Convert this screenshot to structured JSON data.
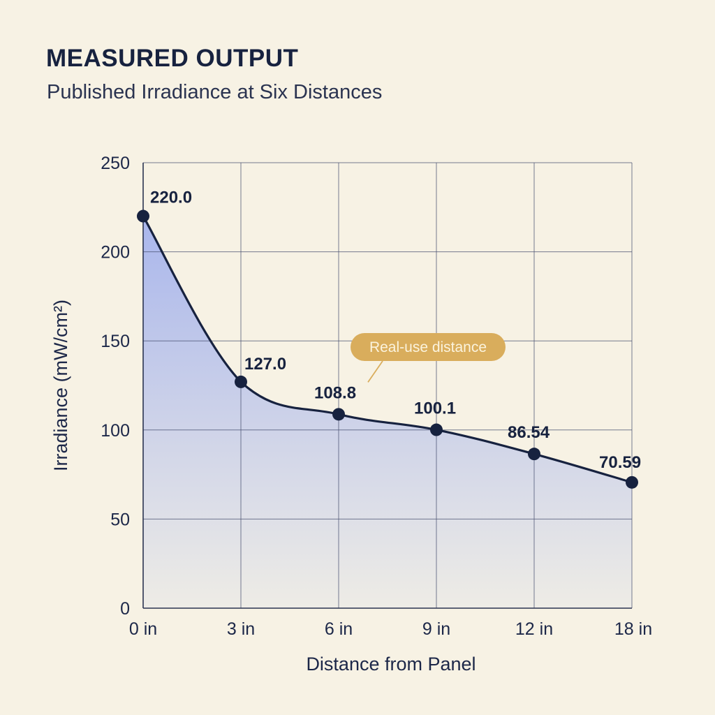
{
  "header": {
    "title": "MEASURED OUTPUT",
    "subtitle": "Published Irradiance at Six Distances"
  },
  "chart_data": {
    "type": "line",
    "area_fill": true,
    "categories": [
      "0 in",
      "3 in",
      "6 in",
      "9 in",
      "12 in",
      "18 in"
    ],
    "series": [
      {
        "values": [
          220.0,
          127.0,
          108.8,
          100.1,
          86.54,
          70.59
        ],
        "labels": [
          "220.0",
          "127.0",
          "108.8",
          "100.1",
          "86.54",
          "70.59"
        ]
      }
    ],
    "xlabel": "Distance from Panel",
    "ylabel": "Irradiance (mW/cm²)",
    "ylim": [
      0,
      250
    ],
    "yticks": [
      0,
      50,
      100,
      150,
      200,
      250
    ],
    "grid": true,
    "annotation": {
      "text": "Real-use distance",
      "points_to_category": "6 in"
    },
    "colors": {
      "line": "#17223f",
      "marker": "#17223f",
      "area_top": "#a9b6ec",
      "area_bottom": "#eeece6",
      "grid": "#4a5272",
      "annotation": "#d9ad5c"
    }
  }
}
